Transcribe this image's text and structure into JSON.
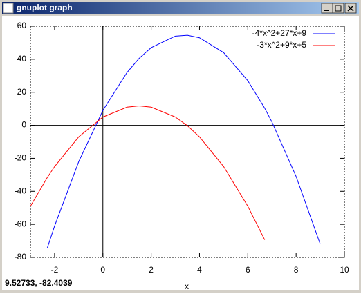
{
  "window_title": "gnuplot graph",
  "status": "9.52733, -82.4039",
  "chart_data": {
    "type": "line",
    "x_label": "x",
    "x": [
      -3,
      -2.3,
      -2,
      -1,
      0,
      1,
      1.5,
      2,
      3,
      3.5,
      4,
      5,
      6,
      6.7,
      7,
      8,
      9
    ],
    "series": [
      {
        "name": "-4*x^2+27*x+9",
        "color": "#0000ff",
        "values": [
          null,
          -74.26,
          -61,
          -22,
          9,
          32,
          40.5,
          47,
          54,
          54.5,
          53,
          44,
          27,
          10.34,
          2,
          -31,
          -72
        ]
      },
      {
        "name": "-3*x^2+9*x+5",
        "color": "#ff0000",
        "values": [
          -49,
          -31.57,
          -25,
          -7,
          5,
          11,
          11.75,
          11,
          5,
          -0.25,
          -7,
          -25,
          -49,
          -69.37,
          null,
          null,
          null
        ]
      }
    ],
    "xlim": [
      -3,
      10
    ],
    "ylim": [
      -80,
      60
    ],
    "xticks": [
      -2,
      0,
      2,
      4,
      6,
      8,
      10
    ],
    "yticks": [
      -80,
      -60,
      -40,
      -20,
      0,
      20,
      40,
      60
    ],
    "zero_axes": true,
    "legend": "top-right"
  }
}
